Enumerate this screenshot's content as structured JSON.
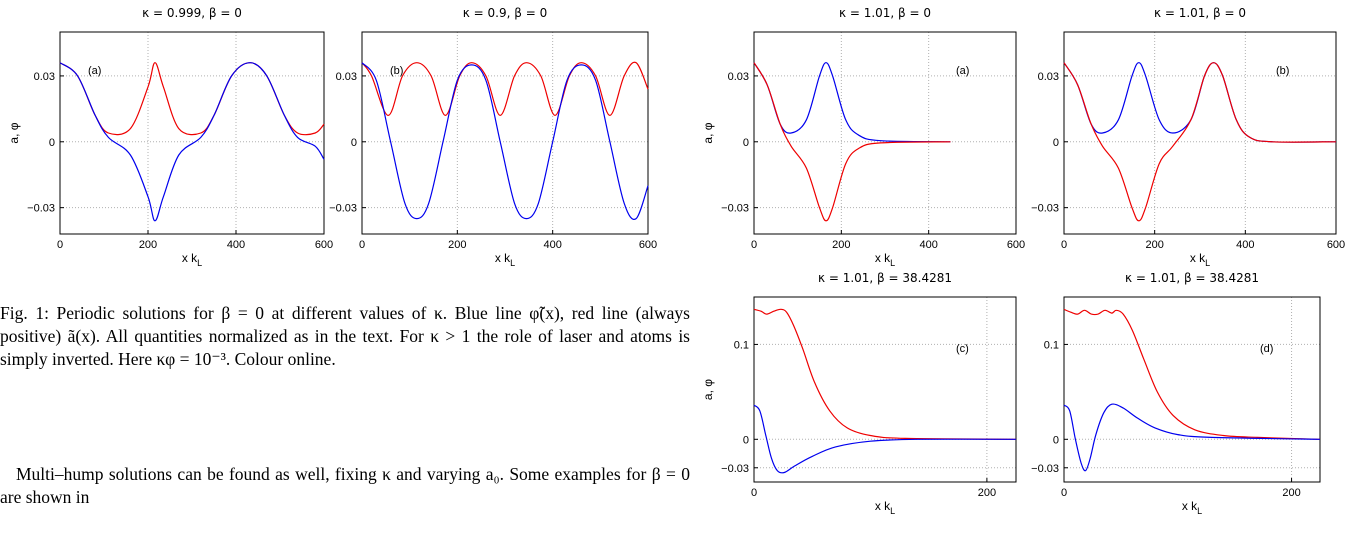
{
  "caption": "Fig. 1: Periodic solutions for β = 0 at different values of κ. Blue line φ̃(x), red line (always positive) ã(x). All quantities normalized as in the text. For κ > 1 the role of laser and atoms is simply inverted. Here κφ = 10⁻³. Colour online.",
  "body_text": "Multi–hump solutions can be found as well, fixing κ and varying a₀. Some examples for β = 0 are shown in",
  "colors": {
    "phi": "#0000ee",
    "a": "#ee0000"
  },
  "chart_data": [
    {
      "type": "line",
      "title": "κ = 0.999,   β = 0",
      "panel_label": "(a)",
      "xlabel": "x k",
      "xlabel_sub": "L",
      "ylabel": "a, φ",
      "xlim": [
        0,
        600
      ],
      "ylim": [
        -0.042,
        0.05
      ],
      "xticks": [
        0,
        200,
        400,
        600
      ],
      "xticklabels": [
        "0",
        "200",
        "400",
        "600"
      ],
      "yticks": [
        -0.03,
        0,
        0.03
      ],
      "yticklabels": [
        "−0.03",
        "0",
        "0.03"
      ],
      "grid": true,
      "series": [
        {
          "color": "red",
          "points": [
            [
              0,
              0.036
            ],
            [
              40,
              0.03
            ],
            [
              80,
              0.012
            ],
            [
              110,
              0.004
            ],
            [
              160,
              0.006
            ],
            [
              200,
              0.025
            ],
            [
              216,
              0.036
            ],
            [
              235,
              0.025
            ],
            [
              270,
              0.006
            ],
            [
              320,
              0.004
            ],
            [
              350,
              0.012
            ],
            [
              390,
              0.03
            ],
            [
              432,
              0.036
            ],
            [
              470,
              0.03
            ],
            [
              510,
              0.012
            ],
            [
              540,
              0.004
            ],
            [
              580,
              0.004
            ],
            [
              600,
              0.008
            ]
          ]
        },
        {
          "color": "blue",
          "points": [
            [
              0,
              0.036
            ],
            [
              40,
              0.03
            ],
            [
              80,
              0.012
            ],
            [
              110,
              0.002
            ],
            [
              160,
              -0.006
            ],
            [
              200,
              -0.025
            ],
            [
              216,
              -0.036
            ],
            [
              235,
              -0.025
            ],
            [
              270,
              -0.006
            ],
            [
              320,
              0.002
            ],
            [
              350,
              0.012
            ],
            [
              390,
              0.03
            ],
            [
              432,
              0.036
            ],
            [
              470,
              0.03
            ],
            [
              510,
              0.012
            ],
            [
              540,
              0.002
            ],
            [
              580,
              -0.002
            ],
            [
              600,
              -0.008
            ]
          ]
        }
      ]
    },
    {
      "type": "line",
      "title": "κ = 0.9,   β = 0",
      "panel_label": "(b)",
      "xlabel": "x k",
      "xlabel_sub": "L",
      "ylabel": "",
      "xlim": [
        0,
        600
      ],
      "ylim": [
        -0.042,
        0.05
      ],
      "xticks": [
        0,
        200,
        400,
        600
      ],
      "xticklabels": [
        "0",
        "200",
        "400",
        "600"
      ],
      "yticks": [
        -0.03,
        0,
        0.03
      ],
      "yticklabels": [
        "−0.03",
        "0",
        "0.03"
      ],
      "grid": true,
      "series": [
        {
          "color": "red",
          "points": [
            [
              0,
              0.036
            ],
            [
              20,
              0.03
            ],
            [
              55,
              0.012
            ],
            [
              85,
              0.03
            ],
            [
              115,
              0.036
            ],
            [
              145,
              0.03
            ],
            [
              175,
              0.012
            ],
            [
              205,
              0.03
            ],
            [
              230,
              0.036
            ],
            [
              260,
              0.03
            ],
            [
              290,
              0.012
            ],
            [
              320,
              0.03
            ],
            [
              345,
              0.036
            ],
            [
              375,
              0.03
            ],
            [
              405,
              0.012
            ],
            [
              435,
              0.03
            ],
            [
              460,
              0.036
            ],
            [
              490,
              0.03
            ],
            [
              520,
              0.012
            ],
            [
              550,
              0.03
            ],
            [
              575,
              0.036
            ],
            [
              600,
              0.024
            ]
          ]
        },
        {
          "color": "blue",
          "points": [
            [
              0,
              0.036
            ],
            [
              30,
              0.028
            ],
            [
              60,
              0.0
            ],
            [
              90,
              -0.028
            ],
            [
              115,
              -0.035
            ],
            [
              140,
              -0.028
            ],
            [
              170,
              0.0
            ],
            [
              200,
              0.028
            ],
            [
              230,
              0.035
            ],
            [
              260,
              0.028
            ],
            [
              290,
              0.0
            ],
            [
              320,
              -0.028
            ],
            [
              345,
              -0.035
            ],
            [
              370,
              -0.028
            ],
            [
              400,
              0.0
            ],
            [
              430,
              0.028
            ],
            [
              460,
              0.035
            ],
            [
              490,
              0.028
            ],
            [
              520,
              0.0
            ],
            [
              550,
              -0.028
            ],
            [
              575,
              -0.035
            ],
            [
              600,
              -0.02
            ]
          ]
        }
      ]
    },
    {
      "type": "line",
      "title": "κ = 1.01,   β = 0",
      "panel_label": "(a)",
      "xlabel": "x k",
      "xlabel_sub": "L",
      "ylabel": "a, φ",
      "xlim": [
        0,
        600
      ],
      "ylim": [
        -0.042,
        0.05
      ],
      "xticks": [
        0,
        200,
        400,
        600
      ],
      "xticklabels": [
        "0",
        "200",
        "400",
        "600"
      ],
      "yticks": [
        -0.03,
        0,
        0.03
      ],
      "yticklabels": [
        "−0.03",
        "0",
        "0.03"
      ],
      "grid": true,
      "series": [
        {
          "color": "blue",
          "points": [
            [
              0,
              0.036
            ],
            [
              30,
              0.026
            ],
            [
              60,
              0.008
            ],
            [
              85,
              0.004
            ],
            [
              120,
              0.01
            ],
            [
              150,
              0.03
            ],
            [
              165,
              0.036
            ],
            [
              180,
              0.03
            ],
            [
              210,
              0.01
            ],
            [
              240,
              0.003
            ],
            [
              290,
              0.0005
            ],
            [
              450,
              0
            ]
          ]
        },
        {
          "color": "red",
          "points": [
            [
              0,
              0.036
            ],
            [
              30,
              0.026
            ],
            [
              60,
              0.008
            ],
            [
              85,
              -0.002
            ],
            [
              120,
              -0.012
            ],
            [
              150,
              -0.03
            ],
            [
              165,
              -0.036
            ],
            [
              180,
              -0.03
            ],
            [
              210,
              -0.01
            ],
            [
              240,
              -0.003
            ],
            [
              290,
              -0.0005
            ],
            [
              450,
              0
            ]
          ]
        }
      ]
    },
    {
      "type": "line",
      "title": "κ = 1.01,   β = 0",
      "panel_label": "(b)",
      "xlabel": "x k",
      "xlabel_sub": "L",
      "ylabel": "",
      "xlim": [
        0,
        600
      ],
      "ylim": [
        -0.042,
        0.05
      ],
      "xticks": [
        0,
        200,
        400,
        600
      ],
      "xticklabels": [
        "0",
        "200",
        "400",
        "600"
      ],
      "yticks": [
        -0.03,
        0,
        0.03
      ],
      "yticklabels": [
        "−0.03",
        "0",
        "0.03"
      ],
      "grid": true,
      "series": [
        {
          "color": "blue",
          "points": [
            [
              0,
              0.036
            ],
            [
              30,
              0.026
            ],
            [
              60,
              0.008
            ],
            [
              85,
              0.004
            ],
            [
              120,
              0.01
            ],
            [
              150,
              0.03
            ],
            [
              165,
              0.036
            ],
            [
              180,
              0.03
            ],
            [
              210,
              0.01
            ],
            [
              240,
              0.004
            ],
            [
              280,
              0.01
            ],
            [
              310,
              0.03
            ],
            [
              330,
              0.036
            ],
            [
              350,
              0.03
            ],
            [
              380,
              0.01
            ],
            [
              410,
              0.002
            ],
            [
              460,
              0
            ],
            [
              600,
              0
            ]
          ]
        },
        {
          "color": "red",
          "points": [
            [
              0,
              0.036
            ],
            [
              30,
              0.026
            ],
            [
              60,
              0.008
            ],
            [
              85,
              -0.002
            ],
            [
              120,
              -0.012
            ],
            [
              150,
              -0.03
            ],
            [
              165,
              -0.036
            ],
            [
              180,
              -0.03
            ],
            [
              210,
              -0.01
            ],
            [
              240,
              -0.002
            ],
            [
              280,
              0.01
            ],
            [
              310,
              0.03
            ],
            [
              330,
              0.036
            ],
            [
              350,
              0.03
            ],
            [
              380,
              0.01
            ],
            [
              410,
              0.002
            ],
            [
              460,
              0
            ],
            [
              600,
              0
            ]
          ]
        }
      ]
    },
    {
      "type": "line",
      "title": "κ = 1.01,   β = 38.4281",
      "panel_label": "(c)",
      "xlabel": "x k",
      "xlabel_sub": "L",
      "ylabel": "a, φ",
      "xlim": [
        0,
        225
      ],
      "ylim": [
        -0.045,
        0.15
      ],
      "xticks": [
        0,
        200
      ],
      "xticklabels": [
        "0",
        "200"
      ],
      "yticks": [
        -0.03,
        0,
        0.1
      ],
      "yticklabels": [
        "−0.03",
        "0",
        "0.1"
      ],
      "grid": true,
      "series": [
        {
          "color": "red",
          "points": [
            [
              0,
              0.137
            ],
            [
              6,
              0.135
            ],
            [
              11,
              0.132
            ],
            [
              17,
              0.135
            ],
            [
              23,
              0.137
            ],
            [
              28,
              0.134
            ],
            [
              34,
              0.12
            ],
            [
              42,
              0.095
            ],
            [
              52,
              0.06
            ],
            [
              65,
              0.03
            ],
            [
              80,
              0.012
            ],
            [
              100,
              0.004
            ],
            [
              130,
              0.001
            ],
            [
              225,
              0
            ]
          ]
        },
        {
          "color": "blue",
          "points": [
            [
              0,
              0.036
            ],
            [
              5,
              0.03
            ],
            [
              10,
              0.005
            ],
            [
              15,
              -0.02
            ],
            [
              20,
              -0.033
            ],
            [
              26,
              -0.035
            ],
            [
              35,
              -0.028
            ],
            [
              50,
              -0.018
            ],
            [
              70,
              -0.008
            ],
            [
              100,
              -0.002
            ],
            [
              140,
              0
            ],
            [
              225,
              0
            ]
          ]
        }
      ]
    },
    {
      "type": "line",
      "title": "κ = 1.01,   β = 38.4281",
      "panel_label": "(d)",
      "xlabel": "x k",
      "xlabel_sub": "L",
      "ylabel": "",
      "xlim": [
        0,
        225
      ],
      "ylim": [
        -0.045,
        0.15
      ],
      "xticks": [
        0,
        200
      ],
      "xticklabels": [
        "0",
        "200"
      ],
      "yticks": [
        -0.03,
        0,
        0.1
      ],
      "yticklabels": [
        "−0.03",
        "0",
        "0.1"
      ],
      "grid": true,
      "series": [
        {
          "color": "red",
          "points": [
            [
              0,
              0.137
            ],
            [
              6,
              0.134
            ],
            [
              12,
              0.132
            ],
            [
              18,
              0.136
            ],
            [
              24,
              0.132
            ],
            [
              30,
              0.132
            ],
            [
              36,
              0.136
            ],
            [
              42,
              0.133
            ],
            [
              46,
              0.136
            ],
            [
              52,
              0.132
            ],
            [
              60,
              0.115
            ],
            [
              70,
              0.085
            ],
            [
              82,
              0.05
            ],
            [
              96,
              0.025
            ],
            [
              115,
              0.01
            ],
            [
              140,
              0.004
            ],
            [
              170,
              0.002
            ],
            [
              225,
              0
            ]
          ]
        },
        {
          "color": "blue",
          "points": [
            [
              0,
              0.036
            ],
            [
              5,
              0.03
            ],
            [
              10,
              0.0
            ],
            [
              15,
              -0.025
            ],
            [
              19,
              -0.033
            ],
            [
              23,
              -0.02
            ],
            [
              28,
              0.005
            ],
            [
              35,
              0.028
            ],
            [
              42,
              0.037
            ],
            [
              52,
              0.033
            ],
            [
              65,
              0.022
            ],
            [
              80,
              0.012
            ],
            [
              100,
              0.005
            ],
            [
              130,
              0.002
            ],
            [
              225,
              0
            ]
          ]
        }
      ]
    }
  ]
}
